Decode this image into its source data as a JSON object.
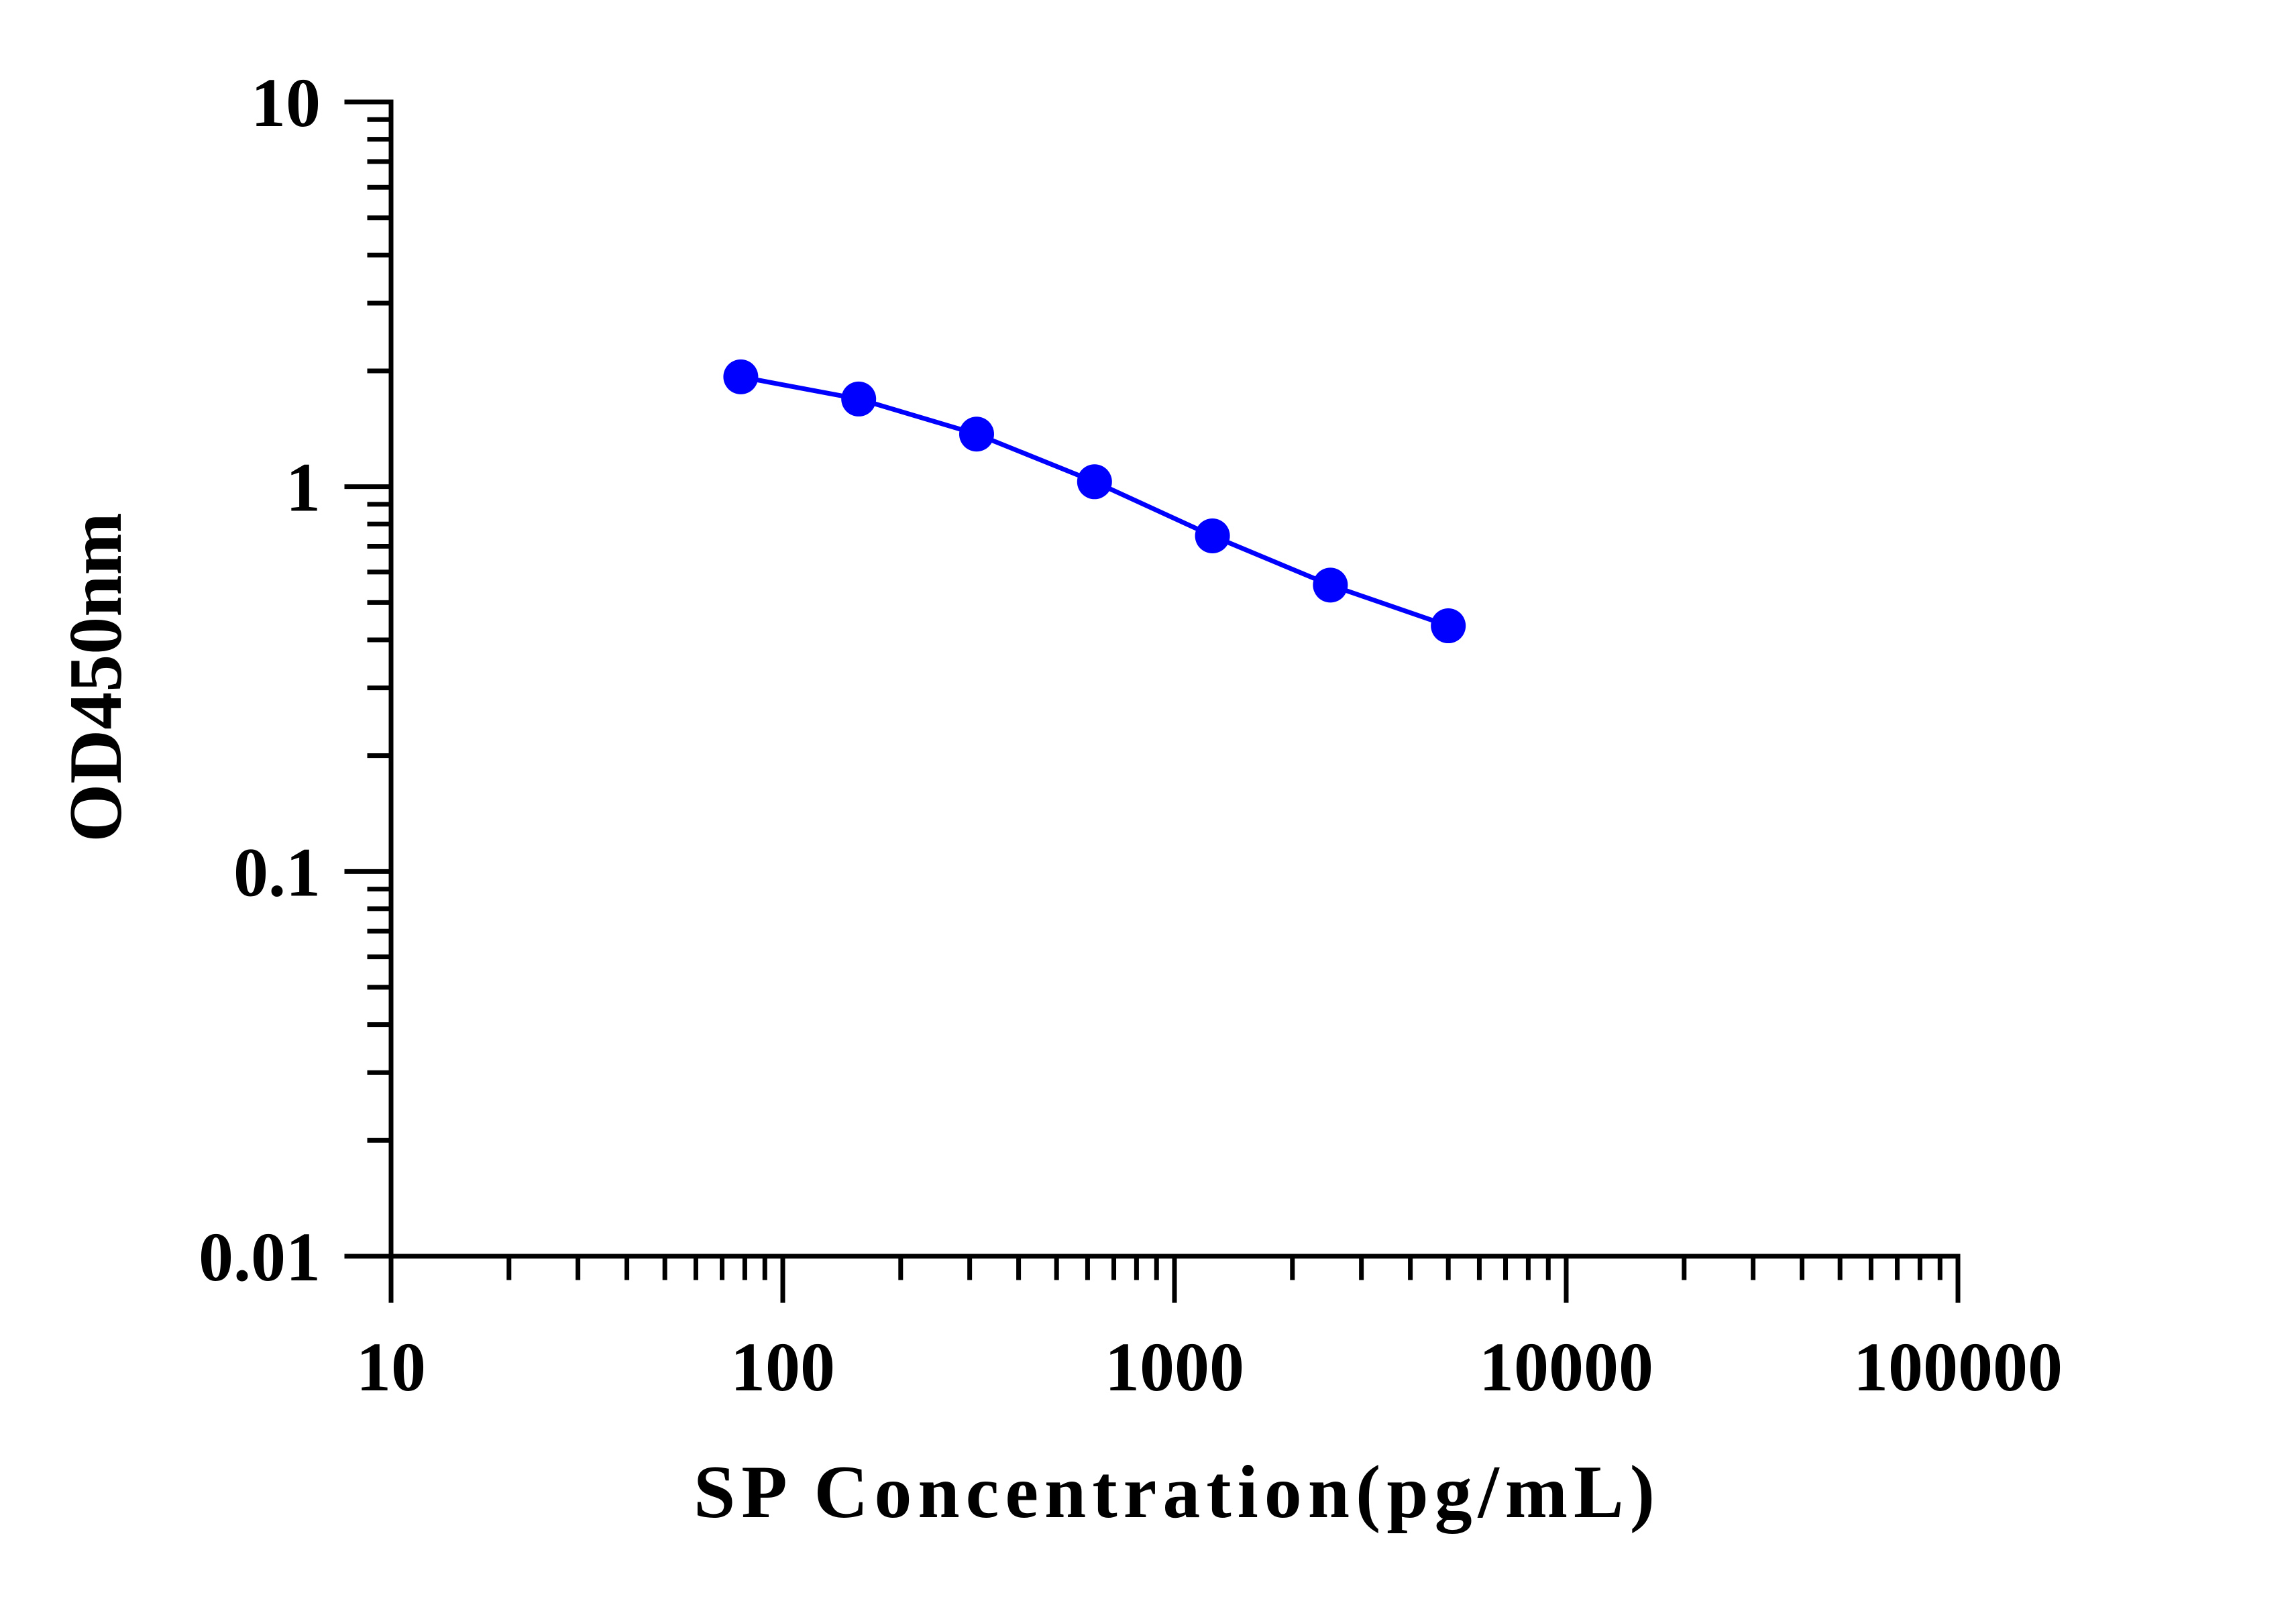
{
  "chart_data": {
    "type": "line",
    "title": "",
    "xlabel": "SP Concentration(pg/mL)",
    "ylabel": "OD450nm",
    "x_scale": "log",
    "y_scale": "log",
    "xlim": [
      10,
      100000
    ],
    "ylim": [
      0.01,
      10
    ],
    "x_ticks": [
      10,
      100,
      1000,
      10000,
      100000
    ],
    "x_tick_labels": [
      "10",
      "100",
      "1000",
      "10000",
      "100000"
    ],
    "y_ticks": [
      0.01,
      0.1,
      1,
      10
    ],
    "y_tick_labels": [
      "0.01",
      "0.1",
      "1",
      "10"
    ],
    "grid": false,
    "legend": "none",
    "series": [
      {
        "color": "#0000ff",
        "marker": "circle",
        "x": [
          78.13,
          156.25,
          312.5,
          625,
          1250,
          2500,
          5000
        ],
        "y": [
          1.93,
          1.69,
          1.37,
          1.03,
          0.745,
          0.555,
          0.435
        ]
      }
    ]
  }
}
